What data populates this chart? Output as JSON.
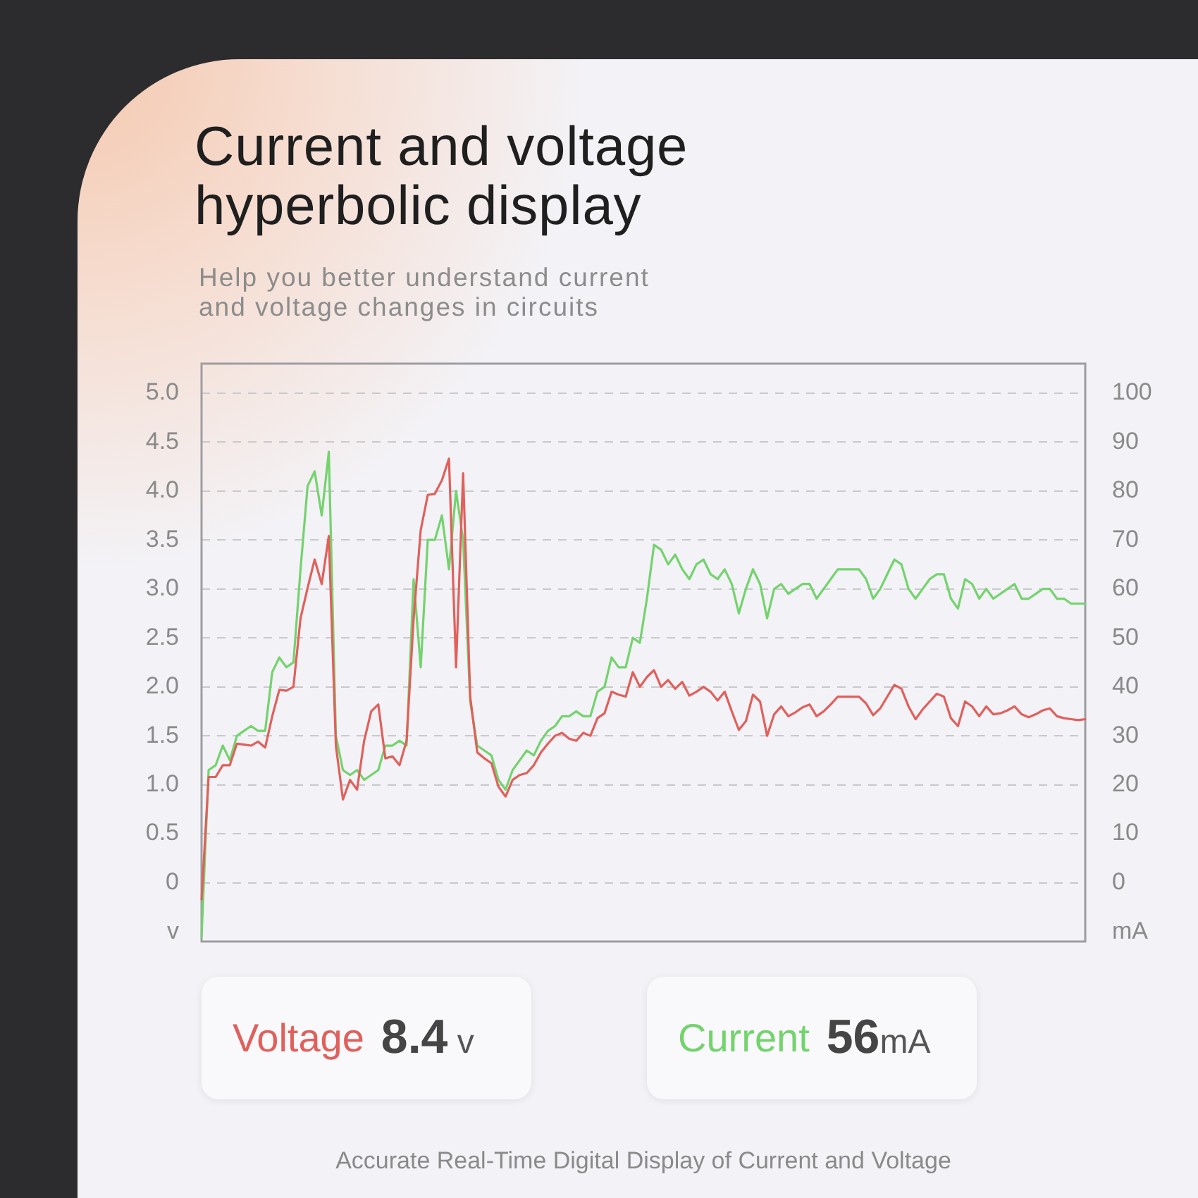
{
  "chart_data": {
    "type": "line",
    "title": "Current and voltage hyperbolic display",
    "subtitle": "Help you better understand current and voltage changes in circuits",
    "ylabel": "v",
    "y2label": "mA",
    "annotations": [
      "8.4 v",
      "56mA",
      "Accurate Real-Time Digital Display of Current and Voltage"
    ],
    "categories": [
      null,
      null,
      null,
      null,
      null,
      null,
      null,
      null,
      null,
      null,
      null,
      null,
      null,
      null,
      null,
      null,
      null,
      null,
      null,
      null,
      null,
      null,
      null,
      null,
      null,
      null,
      null,
      null,
      null,
      null,
      null,
      null,
      null,
      null,
      null,
      null,
      null,
      null,
      null,
      null,
      null,
      null,
      null,
      null,
      null,
      null,
      null,
      null,
      null,
      null,
      null,
      null,
      null,
      null,
      null,
      null,
      null,
      null,
      null,
      null,
      null,
      null,
      null,
      null,
      null,
      null,
      null,
      null,
      null,
      null,
      null,
      null,
      null,
      null,
      null,
      null,
      null,
      null,
      null,
      null,
      null,
      null,
      null,
      null,
      null,
      null,
      null,
      null,
      null,
      null,
      null,
      null,
      null,
      null,
      null,
      null,
      null,
      null,
      null,
      null,
      null,
      null,
      null,
      null,
      null,
      null,
      null,
      null,
      null,
      null,
      null,
      null,
      null,
      null,
      null,
      null,
      null,
      null,
      null,
      null,
      null,
      null,
      null,
      null,
      null,
      null
    ],
    "series": [
      {
        "name": "Voltage",
        "color": "#e0605c",
        "values": [
          -0.17,
          1.08,
          1.08,
          1.2,
          1.2,
          1.42,
          1.41,
          1.4,
          1.44,
          1.38,
          1.7,
          1.97,
          1.96,
          2.0,
          2.7,
          3.01,
          3.3,
          3.05,
          3.54,
          1.4,
          0.85,
          1.05,
          0.95,
          1.45,
          1.75,
          1.82,
          1.27,
          1.29,
          1.2,
          1.45,
          2.7,
          3.6,
          3.96,
          3.97,
          4.11,
          4.33,
          2.2,
          4.18,
          1.9,
          1.33,
          1.27,
          1.22,
          0.98,
          0.88,
          1.05,
          1.1,
          1.12,
          1.2,
          1.33,
          1.42,
          1.5,
          1.53,
          1.47,
          1.45,
          1.53,
          1.5,
          1.68,
          1.73,
          1.95,
          1.92,
          1.9,
          2.15,
          2.0,
          2.1,
          2.17,
          2.0,
          2.07,
          1.98,
          2.05,
          1.91,
          1.95,
          2.0,
          1.95,
          1.86,
          1.95,
          1.75,
          1.56,
          1.65,
          1.92,
          1.85,
          1.5,
          1.72,
          1.8,
          1.7,
          1.74,
          1.79,
          1.82,
          1.7,
          1.75,
          1.82,
          1.9,
          1.9,
          1.9,
          1.9,
          1.83,
          1.71,
          1.78,
          1.9,
          2.02,
          1.98,
          1.8,
          1.67,
          1.77,
          1.85,
          1.93,
          1.9,
          1.68,
          1.6,
          1.85,
          1.8,
          1.7,
          1.8,
          1.72,
          1.73,
          1.76,
          1.8,
          1.72,
          1.69,
          1.72,
          1.76,
          1.78,
          1.7,
          1.68,
          1.67,
          1.66,
          1.67
        ]
      },
      {
        "name": "Current",
        "color": "#74d36e",
        "axis": "y2",
        "values": [
          -11,
          23,
          24,
          28,
          25,
          30,
          31,
          32,
          31,
          31,
          43,
          46,
          44,
          45,
          64,
          81,
          84,
          75,
          88,
          30,
          23,
          22,
          23,
          21,
          22,
          23,
          28,
          28,
          29,
          28,
          62,
          44,
          70,
          70,
          75,
          64,
          80,
          70,
          37,
          28,
          27,
          26,
          21,
          19,
          23,
          25,
          27,
          26,
          29,
          31,
          32,
          34,
          34,
          35,
          34,
          34,
          39,
          40,
          46,
          44,
          44,
          50,
          49,
          58,
          69,
          68,
          65,
          67,
          64,
          62,
          65,
          66,
          63,
          62,
          64,
          61,
          55,
          60,
          64,
          61,
          54,
          60,
          61,
          59,
          60,
          61,
          61,
          58,
          60,
          62,
          64,
          64,
          64,
          64,
          62,
          58,
          60,
          63,
          66,
          65,
          60,
          58,
          60,
          62,
          63,
          63,
          58,
          56,
          62,
          61,
          58,
          60,
          58,
          59,
          60,
          61,
          58,
          58,
          59,
          60,
          60,
          58,
          58,
          57,
          57,
          57
        ]
      }
    ],
    "ylim": [
      -0.6,
      5.3
    ],
    "yticks": [
      0,
      0.5,
      {
        "value": 1,
        "label": "1.0"
      },
      1.5,
      {
        "value": 2,
        "label": "2.0"
      },
      2.5,
      {
        "value": 3,
        "label": "3.0"
      },
      3.5,
      {
        "value": 4,
        "label": "4.0"
      },
      4.5,
      {
        "value": 5,
        "label": "5.0"
      }
    ],
    "y2lim": [
      -12,
      106
    ],
    "y2ticks": [
      0,
      10,
      20,
      30,
      40,
      50,
      60,
      70,
      80,
      90,
      100
    ],
    "grid": "y",
    "legend": "bottom",
    "marker": "none",
    "line_style": "solid"
  }
}
